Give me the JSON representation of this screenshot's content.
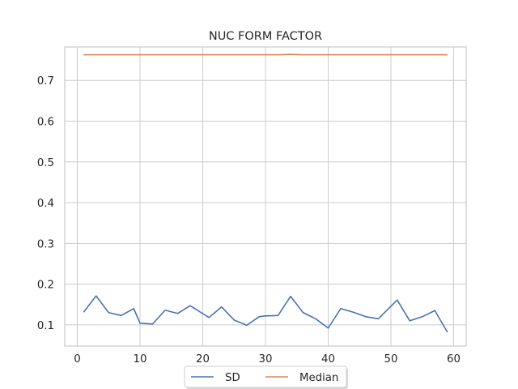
{
  "chart_data": {
    "type": "line",
    "title": "NUC FORM FACTOR",
    "xlabel": "",
    "ylabel": "",
    "xlim": [
      -2,
      62
    ],
    "ylim": [
      0.048,
      0.782
    ],
    "xticks": [
      0,
      10,
      20,
      30,
      40,
      50,
      60
    ],
    "yticks": [
      0.1,
      0.2,
      0.3,
      0.4,
      0.5,
      0.6,
      0.7
    ],
    "grid": true,
    "legend_position": "bottom-center",
    "x": [
      1,
      3,
      5,
      7,
      9,
      10,
      12,
      14,
      16,
      18,
      21,
      23,
      25,
      27,
      29,
      30,
      32,
      34,
      36,
      38,
      40,
      42,
      44,
      46,
      48,
      51,
      53,
      55,
      57,
      59
    ],
    "series": [
      {
        "name": "SD",
        "color": "#4c72b0",
        "values": [
          0.131,
          0.171,
          0.13,
          0.123,
          0.14,
          0.104,
          0.102,
          0.136,
          0.128,
          0.147,
          0.118,
          0.144,
          0.112,
          0.099,
          0.12,
          0.122,
          0.123,
          0.17,
          0.13,
          0.115,
          0.092,
          0.14,
          0.131,
          0.12,
          0.115,
          0.161,
          0.11,
          0.12,
          0.135,
          0.082
        ]
      },
      {
        "name": "Median",
        "color": "#dd8452",
        "values": [
          0.763,
          0.763,
          0.763,
          0.763,
          0.763,
          0.763,
          0.763,
          0.763,
          0.763,
          0.763,
          0.763,
          0.763,
          0.763,
          0.763,
          0.763,
          0.763,
          0.763,
          0.764,
          0.763,
          0.763,
          0.763,
          0.763,
          0.763,
          0.763,
          0.763,
          0.763,
          0.763,
          0.763,
          0.763,
          0.763
        ]
      }
    ]
  }
}
